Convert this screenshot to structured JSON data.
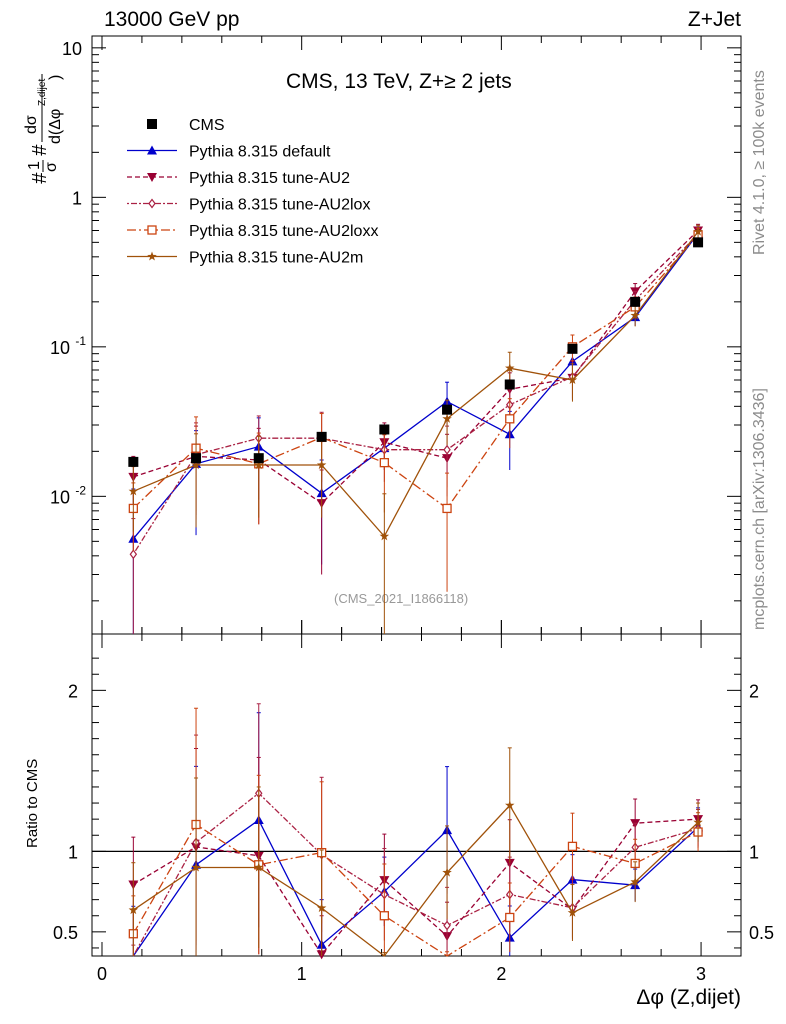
{
  "header": {
    "left": "13000 GeV pp",
    "right": "Z+Jet"
  },
  "side": {
    "rivet": "Rivet 4.1.0, ≥ 100k events",
    "site": "mcplots.cern.ch [arXiv:1306.3436]"
  },
  "chart_data": {
    "type": "line",
    "title": "CMS, 13 TeV, Z+≥ 2 jets",
    "analysis": "(CMS_2021_I1866118)",
    "ylabel_main": "1/σ dσ/d(Δφ^{Z,dijet})",
    "ylabel_ratio": "Ratio to CMS",
    "xlabel": "Δφ (Z,dijet)",
    "xlim": [
      -0.05,
      3.2
    ],
    "ylim_main": [
      0.0012,
      12
    ],
    "ylim_ratio": [
      0.35,
      2.35
    ],
    "x": [
      0.157,
      0.471,
      0.785,
      1.1,
      1.414,
      1.728,
      2.042,
      2.356,
      2.67,
      2.985
    ],
    "x_ticks": [
      "0",
      "1",
      "2",
      "3"
    ],
    "y_ticks_main": [
      "10",
      "1",
      "10^-1",
      "10^-2"
    ],
    "y_ticks_ratio": [
      "2",
      "1",
      "0.5"
    ],
    "legend_position": "top-left",
    "data": {
      "name": "CMS",
      "values": [
        0.017,
        0.018,
        0.018,
        0.025,
        0.028,
        0.038,
        0.056,
        0.097,
        0.2,
        0.5
      ]
    },
    "series": [
      {
        "name": "Pythia 8.315 default",
        "color": "#0000cc",
        "dash": "",
        "marker": "triangle",
        "values": [
          0.0052,
          0.0165,
          0.0215,
          0.0105,
          0.021,
          0.043,
          0.026,
          0.08,
          0.158,
          0.575
        ],
        "errors": [
          0.006,
          0.011,
          0.012,
          0.007,
          0.006,
          0.015,
          0.011,
          0.015,
          0.02,
          0.06
        ]
      },
      {
        "name": "Pythia 8.315 tune-AU2",
        "color": "#990033",
        "dash": "5,3",
        "marker": "triangle-down",
        "values": [
          0.0135,
          0.0185,
          0.0175,
          0.009,
          0.023,
          0.018,
          0.052,
          0.062,
          0.235,
          0.6
        ],
        "errors": [
          0.005,
          0.011,
          0.011,
          0.006,
          0.008,
          0.008,
          0.015,
          0.018,
          0.03,
          0.06
        ]
      },
      {
        "name": "Pythia 8.315 tune-AU2lox",
        "color": "#aa2244",
        "dash": "2,2,6,2",
        "marker": "diamond",
        "values": [
          0.0041,
          0.019,
          0.0245,
          0.0245,
          0.0205,
          0.0205,
          0.041,
          0.063,
          0.205,
          0.57
        ],
        "errors": [
          0.003,
          0.012,
          0.01,
          0.012,
          0.008,
          0.009,
          0.013,
          0.018,
          0.03,
          0.06
        ]
      },
      {
        "name": "Pythia 8.315 tune-AU2loxx",
        "color": "#cc4411",
        "dash": "9,3,2,3",
        "marker": "square-open",
        "values": [
          0.0083,
          0.021,
          0.0165,
          0.0248,
          0.0168,
          0.0083,
          0.033,
          0.1,
          0.185,
          0.56
        ],
        "errors": [
          0.004,
          0.013,
          0.01,
          0.011,
          0.009,
          0.006,
          0.012,
          0.02,
          0.03,
          0.06
        ]
      },
      {
        "name": "Pythia 8.315 tune-AU2m",
        "color": "#a0520a",
        "dash": "",
        "marker": "star",
        "values": [
          0.0108,
          0.0162,
          0.0162,
          0.0162,
          0.0054,
          0.033,
          0.072,
          0.06,
          0.162,
          0.59
        ],
        "errors": [
          0.005,
          0.01,
          0.009,
          0.009,
          0.005,
          0.011,
          0.02,
          0.017,
          0.025,
          0.06
        ]
      }
    ]
  }
}
